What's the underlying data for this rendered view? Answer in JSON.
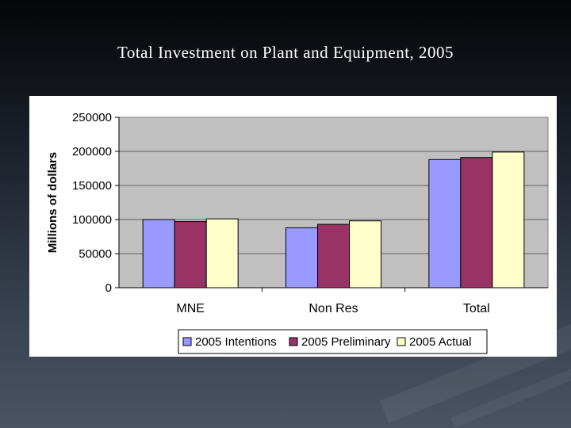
{
  "slide": {
    "title": "Total Investment on Plant and Equipment, 2005"
  },
  "colors": {
    "plot_background": "#c0c0c0",
    "series": [
      "#9999ff",
      "#993366",
      "#ffffcc"
    ]
  },
  "chart_data": {
    "type": "bar",
    "title": "",
    "xlabel": "",
    "ylabel": "Millions of dollars",
    "categories": [
      "MNE",
      "Non Res",
      "Total"
    ],
    "series": [
      {
        "name": "2005 Intentions",
        "values": [
          100000,
          88000,
          188000
        ]
      },
      {
        "name": "2005 Preliminary",
        "values": [
          97000,
          93000,
          191000
        ]
      },
      {
        "name": "2005 Actual",
        "values": [
          101000,
          98000,
          199000
        ]
      }
    ],
    "ylim": [
      0,
      250000
    ],
    "yticks": [
      0,
      50000,
      100000,
      150000,
      200000,
      250000
    ],
    "grid": true,
    "legend": "bottom"
  }
}
